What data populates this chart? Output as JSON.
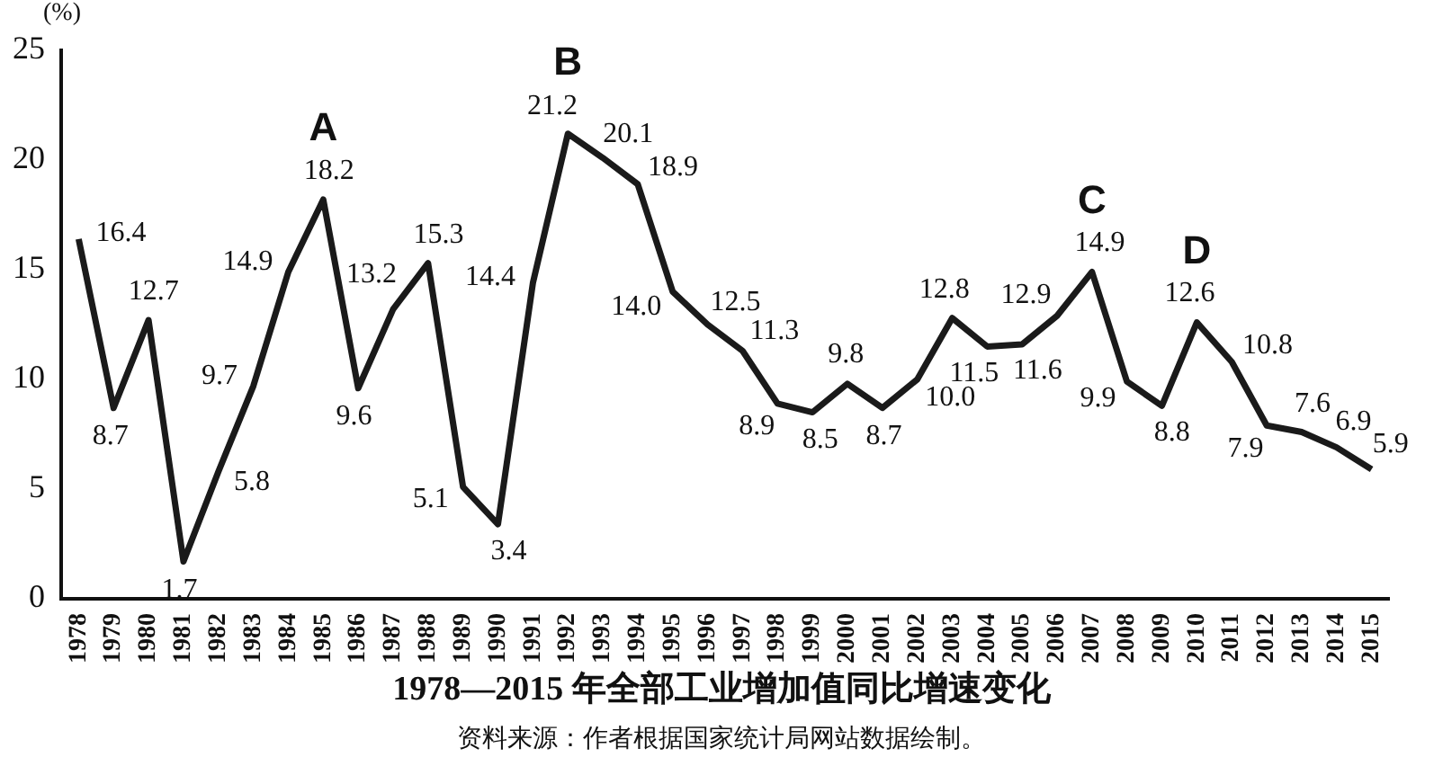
{
  "chart_data": {
    "type": "line",
    "title": "1978—2015 年全部工业增加值同比增速变化",
    "ylabel": "(%)",
    "categories": [
      "1978",
      "1979",
      "1980",
      "1981",
      "1982",
      "1983",
      "1984",
      "1985",
      "1986",
      "1987",
      "1988",
      "1989",
      "1990",
      "1991",
      "1992",
      "1993",
      "1994",
      "1995",
      "1996",
      "1997",
      "1998",
      "1999",
      "2000",
      "2001",
      "2002",
      "2003",
      "2004",
      "2005",
      "2006",
      "2007",
      "2008",
      "2009",
      "2010",
      "2011",
      "2012",
      "2013",
      "2014",
      "2015"
    ],
    "series": [
      {
        "color": "#1a1a1a",
        "values": [
          16.4,
          8.7,
          12.7,
          1.7,
          5.8,
          9.7,
          14.9,
          18.2,
          9.6,
          13.2,
          15.3,
          5.1,
          3.4,
          14.4,
          21.2,
          20.1,
          18.9,
          14.0,
          12.5,
          11.3,
          8.9,
          8.5,
          9.8,
          8.7,
          10.0,
          12.8,
          11.5,
          11.6,
          12.9,
          14.9,
          9.9,
          8.8,
          12.6,
          10.8,
          7.9,
          7.6,
          6.9,
          5.9
        ],
        "value_labels": [
          "16.4",
          "8.7",
          "12.7",
          "1.7",
          "5.8",
          "9.7",
          "14.9",
          "18.2",
          "9.6",
          "13.2",
          "15.3",
          "5.1",
          "3.4",
          "14.4",
          "21.2",
          "20.1",
          "18.9",
          "14.0",
          "12.5",
          "11.3",
          "8.9",
          "8.5",
          "9.8",
          "8.7",
          "10.0",
          "12.8",
          "11.5",
          "11.6",
          "12.9",
          "14.9",
          "9.9",
          "8.8",
          "12.6",
          "10.8",
          "7.9",
          "7.6",
          "6.9",
          "5.9"
        ]
      }
    ],
    "ylim": [
      0,
      25
    ],
    "yticks": [
      0,
      5,
      10,
      15,
      20,
      25
    ],
    "grid": false,
    "legend": false,
    "marker": "none",
    "line_style": "solid",
    "data_labels": true,
    "annotations": [
      {
        "text": "A",
        "x": "1985",
        "y": 18.2
      },
      {
        "text": "B",
        "x": "1992",
        "y": 21.2
      },
      {
        "text": "C",
        "x": "2007",
        "y": 14.9
      },
      {
        "text": "D",
        "x": "2010",
        "y": 12.6
      },
      "资料来源：作者根据国家统计局网站数据绘制。"
    ]
  }
}
